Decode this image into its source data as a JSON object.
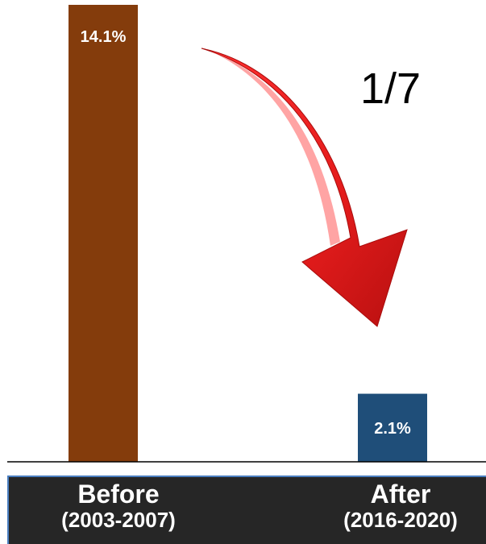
{
  "chart_data": {
    "type": "bar",
    "categories": [
      "Before",
      "After"
    ],
    "periods": [
      "(2003-2007)",
      "(2016-2020)"
    ],
    "values": [
      14.1,
      2.1
    ],
    "value_labels": [
      "14.1%",
      "2.1%"
    ],
    "bar_colors": [
      "#843c0c",
      "#1f4e79"
    ],
    "ylim": [
      0,
      14.1
    ],
    "annotation": "1/7",
    "arrow_color": "#e02020",
    "grid": false
  },
  "band": {
    "before_name": "Before",
    "before_period": "(2003-2007)",
    "after_name": "After",
    "after_period": "(2016-2020)"
  }
}
